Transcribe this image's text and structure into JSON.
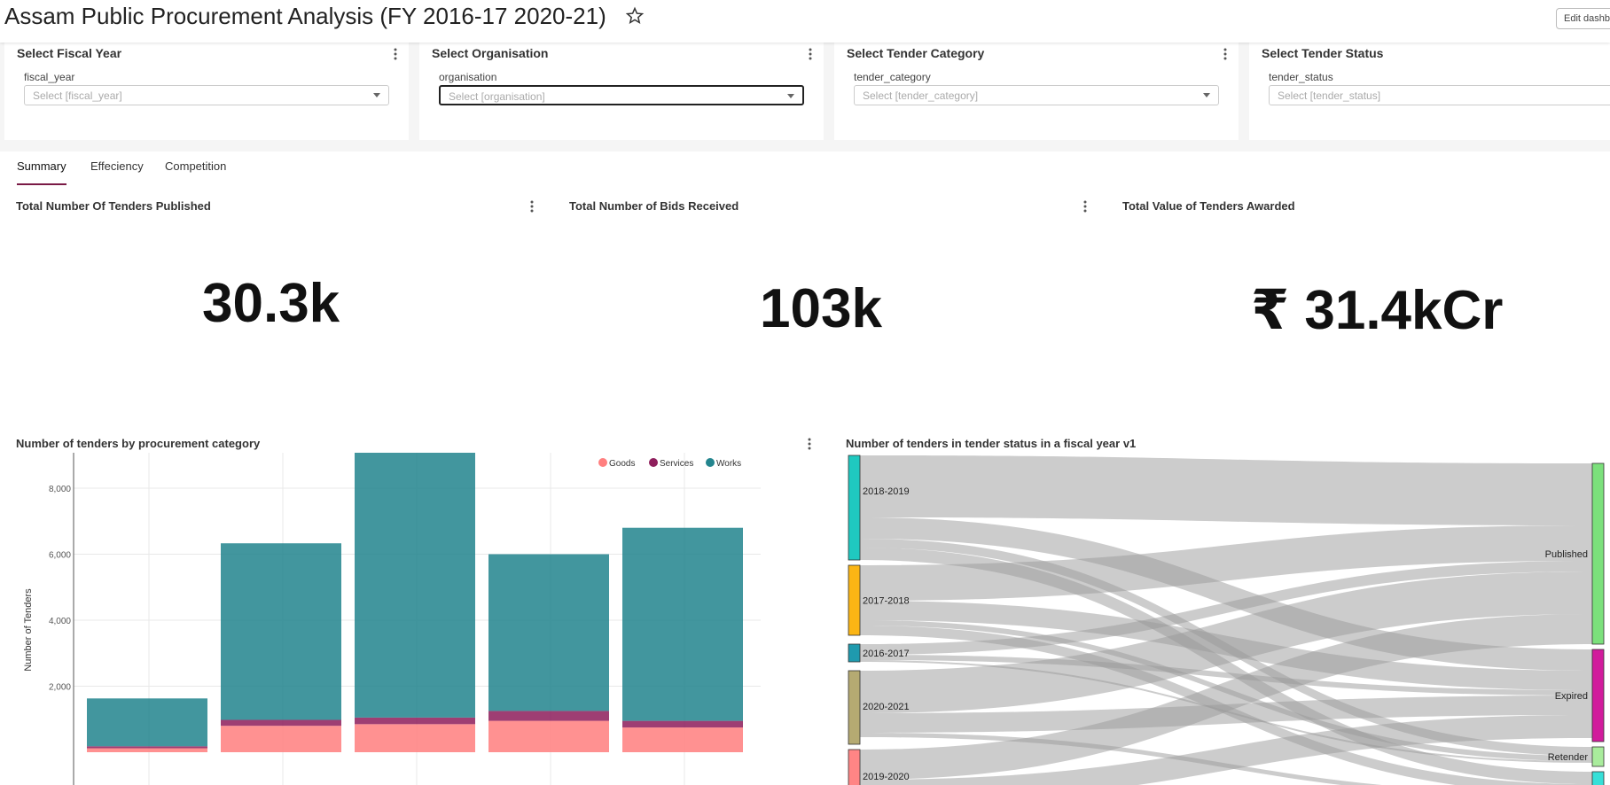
{
  "header": {
    "title": "Assam Public Procurement Analysis (FY 2016-17 2020-21)",
    "edit_label": "Edit dashboard"
  },
  "filters": [
    {
      "title": "Select Fiscal Year",
      "label": "fiscal_year",
      "placeholder": "Select [fiscal_year]"
    },
    {
      "title": "Select Organisation",
      "label": "organisation",
      "placeholder": "Select [organisation]"
    },
    {
      "title": "Select Tender Category",
      "label": "tender_category",
      "placeholder": "Select [tender_category]"
    },
    {
      "title": "Select Tender Status",
      "label": "tender_status",
      "placeholder": "Select [tender_status]"
    }
  ],
  "tabs": [
    "Summary",
    "Effeciency",
    "Competition"
  ],
  "active_tab": "Summary",
  "kpis": [
    {
      "title": "Total Number Of Tenders Published",
      "value": "30.3k"
    },
    {
      "title": "Total Number of Bids Received",
      "value": "103k"
    },
    {
      "title": "Total Value of Tenders Awarded",
      "value": "₹ 31.4kCr"
    }
  ],
  "chart_data": [
    {
      "type": "bar",
      "stacked": true,
      "title": "Number of tenders by procurement category",
      "xlabel": "",
      "ylabel": "Number of Tenders",
      "ylim": [
        0,
        9500
      ],
      "yticks": [
        "2,000",
        "4,000",
        "6,000",
        "8,000"
      ],
      "ytick_values": [
        2000,
        4000,
        6000,
        8000
      ],
      "grid": true,
      "legend_position": "top-right",
      "categories": [
        "",
        "",
        "",
        "",
        ""
      ],
      "series": [
        {
          "name": "Goods",
          "color": "#ff7f7f",
          "values": [
            120,
            800,
            850,
            950,
            750
          ]
        },
        {
          "name": "Services",
          "color": "#8e1e5c",
          "values": [
            60,
            180,
            200,
            300,
            200
          ]
        },
        {
          "name": "Works",
          "color": "#23858e",
          "values": [
            1450,
            5350,
            8450,
            4750,
            5850
          ]
        }
      ]
    },
    {
      "type": "sankey",
      "title": "Number of tenders in tender status in a fiscal year v1",
      "sources": [
        {
          "name": "2018-2019",
          "color": "#1fc9c0"
        },
        {
          "name": "2017-2018",
          "color": "#fbb514"
        },
        {
          "name": "2016-2017",
          "color": "#1f9aae"
        },
        {
          "name": "2020-2021",
          "color": "#b5aa72"
        },
        {
          "name": "2019-2020",
          "color": "#ff8585"
        }
      ],
      "targets": [
        {
          "name": "Published",
          "color": "#7be07b"
        },
        {
          "name": "Expired",
          "color": "#d11c9c"
        },
        {
          "name": "Retender",
          "color": "#a9ec9c"
        }
      ]
    }
  ]
}
